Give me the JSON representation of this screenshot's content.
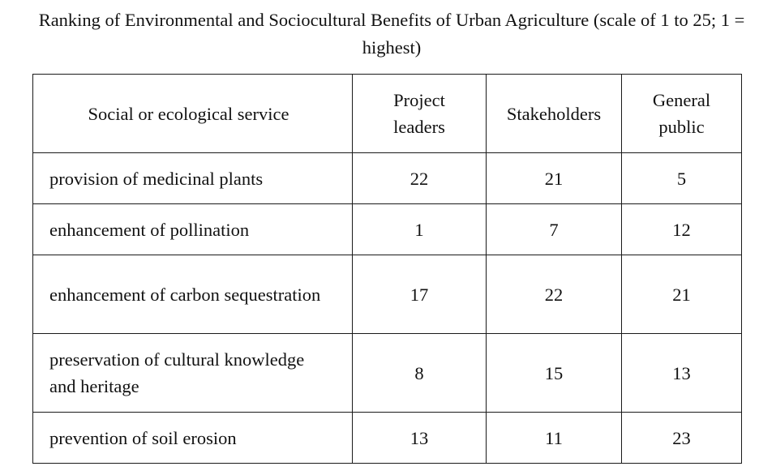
{
  "title": "Ranking of Environmental and Sociocultural Benefits of Urban Agriculture (scale of 1 to 25; 1 = highest)",
  "table": {
    "headers": {
      "service": "Social or ecological service",
      "project_leaders": "Project leaders",
      "stakeholders": "Stakeholders",
      "general_public": "General public"
    },
    "rows": [
      {
        "service": "provision of medicinal plants",
        "project_leaders": "22",
        "stakeholders": "21",
        "general_public": "5"
      },
      {
        "service": "enhancement of pollination",
        "project_leaders": "1",
        "stakeholders": "7",
        "general_public": "12"
      },
      {
        "service": "enhancement of carbon sequestration",
        "project_leaders": "17",
        "stakeholders": "22",
        "general_public": "21"
      },
      {
        "service": "preservation of cultural knowledge and heritage",
        "project_leaders": "8",
        "stakeholders": "15",
        "general_public": "13"
      },
      {
        "service": "prevention of soil erosion",
        "project_leaders": "13",
        "stakeholders": "11",
        "general_public": "23"
      }
    ]
  }
}
